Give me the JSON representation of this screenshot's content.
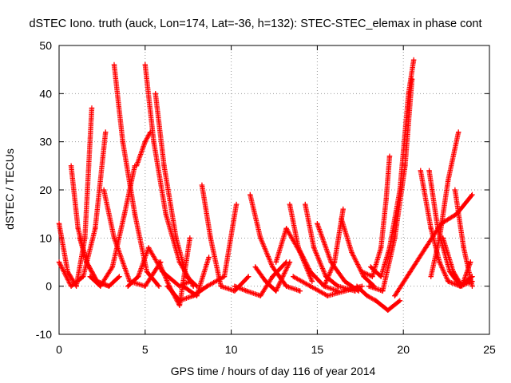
{
  "chart_data": {
    "type": "scatter",
    "title": "dSTEC Iono. truth (auck, Lon=174, Lat=-36, h=132): STEC-STEC_elemax in phase cont",
    "xlabel": "GPS time / hours of day 116 of year 2014",
    "ylabel": "dSTEC  / TECUs",
    "xlim": [
      0,
      25
    ],
    "ylim": [
      -10,
      50
    ],
    "xticks": [
      0,
      5,
      10,
      15,
      20,
      25
    ],
    "yticks": [
      -10,
      0,
      10,
      20,
      30,
      40,
      50
    ],
    "grid": true,
    "marker": "plus",
    "color": "#ff0000",
    "series": [
      {
        "x": [
          0.0,
          0.5,
          1.0,
          1.5,
          1.9
        ],
        "y": [
          13,
          3,
          0,
          10,
          37
        ]
      },
      {
        "x": [
          0.0,
          0.7,
          1.4,
          2.1,
          2.7
        ],
        "y": [
          5,
          0,
          2,
          12,
          32
        ]
      },
      {
        "x": [
          0.7,
          1.1,
          1.6,
          2.2,
          2.9
        ],
        "y": [
          25,
          12,
          5,
          1,
          0
        ]
      },
      {
        "x": [
          1.2,
          1.6,
          2.2,
          2.9,
          3.5
        ],
        "y": [
          10,
          5,
          1,
          0,
          2
        ]
      },
      {
        "x": [
          1.8,
          2.4,
          3.1,
          3.8,
          4.4
        ],
        "y": [
          2,
          0,
          4,
          15,
          25
        ]
      },
      {
        "x": [
          3.2,
          3.7,
          4.4,
          5.1,
          5.8
        ],
        "y": [
          46,
          30,
          15,
          3,
          0
        ]
      },
      {
        "x": [
          2.6,
          3.2,
          4.1,
          5.0,
          5.9
        ],
        "y": [
          20,
          10,
          1,
          0,
          5
        ]
      },
      {
        "x": [
          4.0,
          4.6,
          5.2,
          6.0,
          7.0,
          7.6
        ],
        "y": [
          0,
          2,
          8,
          3,
          0,
          1
        ]
      },
      {
        "x": [
          5.0,
          5.5,
          6.2,
          7.0,
          7.8
        ],
        "y": [
          46,
          30,
          15,
          5,
          0
        ]
      },
      {
        "x": [
          5.6,
          6.1,
          6.8,
          7.4,
          8.0
        ],
        "y": [
          40,
          25,
          10,
          2,
          0
        ]
      },
      {
        "x": [
          4.5,
          5.0,
          5.3
        ],
        "y": [
          25,
          30,
          32
        ]
      },
      {
        "x": [
          5.8,
          6.4,
          7.0,
          7.6
        ],
        "y": [
          5,
          0,
          -4,
          10
        ]
      },
      {
        "x": [
          6.3,
          7.0,
          7.8,
          8.6,
          9.6,
          10.3
        ],
        "y": [
          0,
          -3,
          -2,
          0,
          2,
          17
        ]
      },
      {
        "x": [
          8.3,
          8.8,
          9.4,
          10.2,
          11.0
        ],
        "y": [
          21,
          10,
          0,
          -1,
          2
        ]
      },
      {
        "x": [
          7.2,
          8.0,
          8.7
        ],
        "y": [
          0,
          -2,
          6
        ]
      },
      {
        "x": [
          11.1,
          11.7,
          12.4,
          13.2,
          14.0
        ],
        "y": [
          19,
          10,
          4,
          0,
          -1
        ]
      },
      {
        "x": [
          10.2,
          10.9,
          11.7,
          12.4,
          13.2
        ],
        "y": [
          0,
          -1,
          -2,
          2,
          5
        ]
      },
      {
        "x": [
          11.4,
          12.0,
          12.6,
          13.4
        ],
        "y": [
          4,
          1,
          -1,
          5
        ]
      },
      {
        "x": [
          13.4,
          13.9,
          14.6,
          15.4,
          16.2
        ],
        "y": [
          17,
          8,
          3,
          0,
          -1
        ]
      },
      {
        "x": [
          14.3,
          14.8,
          15.5,
          16.2,
          17.2
        ],
        "y": [
          17,
          8,
          2,
          0,
          -1
        ]
      },
      {
        "x": [
          12.6,
          13.2,
          14.0,
          14.7
        ],
        "y": [
          5,
          12,
          7,
          1
        ]
      },
      {
        "x": [
          15.0,
          15.8,
          16.6,
          17.4
        ],
        "y": [
          13,
          5,
          1,
          -1
        ]
      },
      {
        "x": [
          15.4,
          16.0,
          16.5
        ],
        "y": [
          0,
          5,
          16
        ]
      },
      {
        "x": [
          16.4,
          17.0,
          17.7,
          18.3
        ],
        "y": [
          14,
          7,
          2,
          0
        ]
      },
      {
        "x": [
          13.6,
          14.6,
          15.6,
          16.6,
          17.6
        ],
        "y": [
          2,
          0,
          -2,
          -1,
          0
        ]
      },
      {
        "x": [
          17.3,
          17.9,
          18.4,
          19.1,
          19.8
        ],
        "y": [
          0,
          -2,
          -3,
          -5,
          -3
        ]
      },
      {
        "x": [
          18.1,
          18.7,
          19.2,
          19.8,
          20.3,
          20.6
        ],
        "y": [
          4,
          2,
          8,
          20,
          40,
          47
        ]
      },
      {
        "x": [
          17.6,
          18.2,
          18.7,
          19.0,
          19.2
        ],
        "y": [
          3,
          2,
          8,
          18,
          27
        ]
      },
      {
        "x": [
          18.0,
          18.8,
          19.5,
          20.1,
          20.5
        ],
        "y": [
          0,
          -1,
          10,
          25,
          43
        ]
      },
      {
        "x": [
          19.5,
          20.4,
          21.3,
          22.2,
          23.1,
          24.0
        ],
        "y": [
          -2,
          3,
          8,
          13,
          15,
          19
        ]
      },
      {
        "x": [
          21.0,
          21.6,
          22.1,
          22.6,
          23.3,
          24.0
        ],
        "y": [
          24,
          12,
          5,
          1,
          0,
          2
        ]
      },
      {
        "x": [
          21.5,
          22.0,
          22.7,
          23.3,
          24.0
        ],
        "y": [
          24,
          12,
          3,
          0,
          1
        ]
      },
      {
        "x": [
          21.6,
          22.1,
          22.6,
          23.2
        ],
        "y": [
          2,
          10,
          22,
          32
        ]
      },
      {
        "x": [
          23.0,
          23.5,
          24.0
        ],
        "y": [
          20,
          8,
          0
        ]
      },
      {
        "x": [
          22.3,
          22.9,
          23.4,
          23.9
        ],
        "y": [
          10,
          3,
          0,
          5
        ]
      }
    ]
  }
}
